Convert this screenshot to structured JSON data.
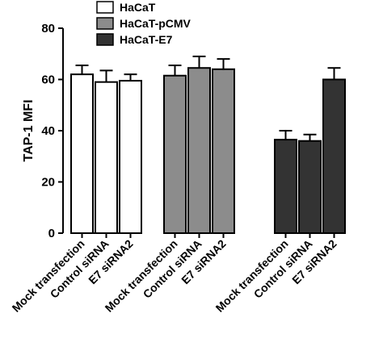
{
  "chart_data": {
    "type": "bar",
    "ylabel": "TAP-1 MFI",
    "categories": [
      "Mock transfection",
      "Control siRNA",
      "E7 siRNA2",
      "Mock transfection",
      "Control siRNA",
      "E7 siRNA2",
      "Mock transfection",
      "Control siRNA",
      "E7 siRNA2"
    ],
    "series": [
      {
        "name": "HaCaT",
        "color": "#ffffff",
        "values": [
          62,
          59,
          59.5,
          null,
          null,
          null,
          null,
          null,
          null
        ],
        "errors": [
          3.5,
          4.5,
          2.5,
          null,
          null,
          null,
          null,
          null,
          null
        ]
      },
      {
        "name": "HaCaT-pCMV",
        "color": "#8c8c8c",
        "values": [
          null,
          null,
          null,
          61.5,
          64.5,
          64,
          null,
          null,
          null
        ],
        "errors": [
          null,
          null,
          null,
          4,
          4.5,
          4,
          null,
          null,
          null
        ]
      },
      {
        "name": "HaCaT-E7",
        "color": "#333333",
        "values": [
          null,
          null,
          null,
          null,
          null,
          null,
          36.5,
          36,
          60
        ],
        "errors": [
          null,
          null,
          null,
          null,
          null,
          null,
          3.5,
          2.5,
          4.5
        ]
      }
    ],
    "ylim": [
      0,
      80
    ],
    "yticks": [
      0,
      20,
      40,
      60,
      80
    ]
  }
}
